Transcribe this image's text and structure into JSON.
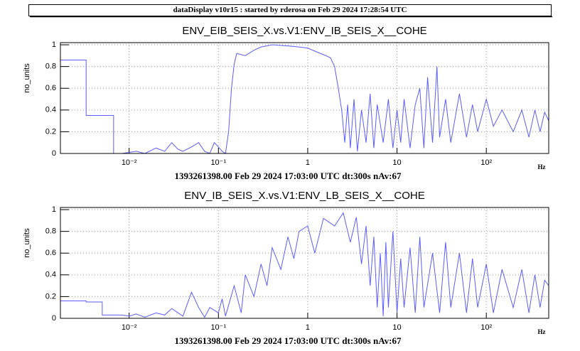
{
  "header": {
    "title": "dataDisplay v10r15 : started by rderosa on Feb 29 2024 17:28:54 UTC"
  },
  "chart_data": [
    {
      "type": "line",
      "title": "ENV_EIB_SEIS_X.vs.V1:ENV_IB_SEIS_X__COHE",
      "ylabel": "no_units",
      "xlabel": "1393261398.00 Feb 29 2024 17:03:00 UTC dt:300s nAv:67",
      "xunit": "Hz",
      "log_x": true,
      "grid": true,
      "color": "#5b5bff",
      "xlim": [
        0.0017,
        500
      ],
      "ylim": [
        0,
        1.02
      ],
      "xticks": [
        {
          "value": 0.01,
          "label": "10⁻²"
        },
        {
          "value": 0.1,
          "label": "10⁻¹"
        },
        1,
        10,
        {
          "value": 100,
          "label": "10²"
        }
      ],
      "yticks": [
        0,
        0.2,
        0.4,
        0.6,
        0.8,
        1
      ],
      "x": [
        0.0017,
        0.0033,
        0.0033,
        0.005,
        0.0067,
        0.0067,
        0.0083,
        0.01,
        0.012,
        0.015,
        0.02,
        0.025,
        0.03,
        0.035,
        0.04,
        0.05,
        0.06,
        0.07,
        0.08,
        0.09,
        0.1,
        0.11,
        0.12,
        0.13,
        0.14,
        0.15,
        0.16,
        0.2,
        0.25,
        0.3,
        0.4,
        0.6,
        0.8,
        1.0,
        1.3,
        1.6,
        1.8,
        2.0,
        2.2,
        2.4,
        2.6,
        2.8,
        3.0,
        3.3,
        3.6,
        4,
        4.5,
        5,
        5.5,
        6,
        7,
        8,
        9,
        10,
        11,
        12,
        14,
        16,
        18,
        20,
        22,
        25,
        28,
        30,
        35,
        40,
        50,
        60,
        70,
        80,
        100,
        120,
        150,
        200,
        250,
        300,
        350,
        400,
        450,
        500
      ],
      "values": [
        0.86,
        0.86,
        0.35,
        0.35,
        0.35,
        0.0,
        0.0,
        0.01,
        0.02,
        0.0,
        0.05,
        0.02,
        0.1,
        0.04,
        0.02,
        0.06,
        0.1,
        0.02,
        0.0,
        0.1,
        0.06,
        0.02,
        0.0,
        0.2,
        0.6,
        0.82,
        0.92,
        0.9,
        0.95,
        0.98,
        1.0,
        0.99,
        0.98,
        0.97,
        0.93,
        0.9,
        0.88,
        0.8,
        0.6,
        0.4,
        0.1,
        0.45,
        0.05,
        0.5,
        0.02,
        0.4,
        0.1,
        0.55,
        0.05,
        0.45,
        0.1,
        0.5,
        0.05,
        0.4,
        0.1,
        0.5,
        0.05,
        0.45,
        0.6,
        0.05,
        0.7,
        0.1,
        0.8,
        0.15,
        0.5,
        0.1,
        0.55,
        0.15,
        0.45,
        0.2,
        0.5,
        0.25,
        0.4,
        0.2,
        0.4,
        0.15,
        0.4,
        0.2,
        0.38,
        0.3
      ]
    },
    {
      "type": "line",
      "title": "ENV_IB_SEIS_X.vs.V1:ENV_LB_SEIS_X__COHE",
      "ylabel": "no_units",
      "xlabel": "1393261398.00 Feb 29 2024 17:03:00 UTC dt:300s nAv:67",
      "xunit": "Hz",
      "log_x": true,
      "grid": true,
      "color": "#5b5bff",
      "xlim": [
        0.0017,
        500
      ],
      "ylim": [
        0,
        1.02
      ],
      "xticks": [
        {
          "value": 0.01,
          "label": "10⁻²"
        },
        {
          "value": 0.1,
          "label": "10⁻¹"
        },
        1,
        10,
        {
          "value": 100,
          "label": "10²"
        }
      ],
      "yticks": [
        0,
        0.2,
        0.4,
        0.6,
        0.8,
        1
      ],
      "x": [
        0.0017,
        0.0033,
        0.0033,
        0.005,
        0.005,
        0.0083,
        0.01,
        0.012,
        0.015,
        0.02,
        0.025,
        0.03,
        0.04,
        0.05,
        0.06,
        0.07,
        0.08,
        0.1,
        0.11,
        0.12,
        0.15,
        0.18,
        0.2,
        0.25,
        0.3,
        0.35,
        0.4,
        0.5,
        0.6,
        0.7,
        0.8,
        1.0,
        1.2,
        1.5,
        2.0,
        2.5,
        3.0,
        3.5,
        4,
        4.5,
        5,
        5.5,
        6,
        6.5,
        7,
        7.5,
        8,
        9,
        10,
        11,
        12,
        14,
        16,
        18,
        20,
        25,
        30,
        35,
        40,
        50,
        60,
        70,
        80,
        100,
        120,
        150,
        200,
        250,
        300,
        350,
        400,
        450,
        500
      ],
      "values": [
        0.16,
        0.16,
        0.15,
        0.15,
        0.03,
        0.03,
        0.02,
        0.04,
        0.01,
        0.05,
        0.03,
        0.09,
        0.02,
        0.24,
        0.1,
        0.01,
        0.1,
        0.05,
        0.18,
        0.02,
        0.3,
        0.05,
        0.4,
        0.2,
        0.5,
        0.3,
        0.65,
        0.45,
        0.75,
        0.55,
        0.8,
        0.85,
        0.6,
        0.92,
        0.85,
        0.97,
        0.7,
        0.93,
        0.5,
        0.85,
        0.3,
        0.75,
        0.1,
        0.6,
        0.02,
        0.7,
        0.1,
        0.8,
        0.05,
        0.55,
        0.1,
        0.65,
        0.05,
        0.75,
        0.1,
        0.6,
        0.05,
        0.7,
        0.1,
        0.6,
        0.05,
        0.55,
        0.1,
        0.5,
        0.05,
        0.45,
        0.1,
        0.45,
        0.05,
        0.4,
        0.1,
        0.35,
        0.3
      ]
    }
  ]
}
